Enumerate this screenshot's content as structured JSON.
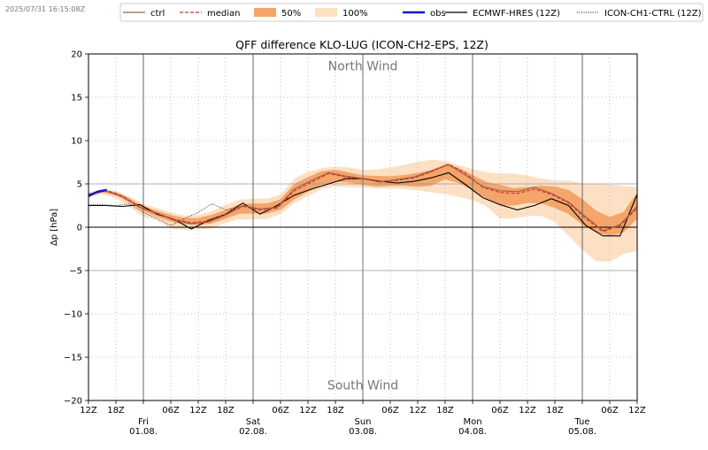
{
  "timestamp": "2025/07/31 16:15:08Z",
  "colors": {
    "ctrl": "#a05a4a",
    "median": "#c0382b",
    "band50": "#f5a56a",
    "band100": "#fde0c4",
    "obs": "#1515cc",
    "ecmwf": "#000000",
    "icon_ch1": "#333333"
  },
  "legend": [
    {
      "key": "ctrl",
      "label": "ctrl",
      "style": "solid",
      "color": "#a05a4a"
    },
    {
      "key": "median",
      "label": "median",
      "style": "dashed",
      "color": "#c0382b"
    },
    {
      "key": "band50",
      "label": "50%",
      "style": "patch",
      "color": "#f5a56a"
    },
    {
      "key": "band100",
      "label": "100%",
      "style": "patch",
      "color": "#fde0c4"
    },
    {
      "key": "obs",
      "label": "obs",
      "style": "thick",
      "color": "#1515cc"
    },
    {
      "key": "ecmwf",
      "label": "ECMWF-HRES (12Z)",
      "style": "solid",
      "color": "#000000"
    },
    {
      "key": "icon_ch1",
      "label": "ICON-CH1-CTRL (12Z)",
      "style": "dotted",
      "color": "#333333"
    }
  ],
  "chart_data": {
    "type": "line",
    "title": "QFF difference KLO-LUG (ICON-CH2-EPS, 12Z)",
    "ylabel": "Δp [hPa]",
    "xlabel": "",
    "ylim": [
      -20,
      20
    ],
    "xlim_hours": [
      0,
      120
    ],
    "grid": true,
    "legend_position": "top",
    "yticks": [
      -20,
      -15,
      -10,
      -5,
      0,
      5,
      10,
      15,
      20
    ],
    "yticks_labels": [
      "−20",
      "−15",
      "−10",
      "−5",
      "0",
      "5",
      "10",
      "15",
      "20"
    ],
    "xticks": [
      {
        "h": 0,
        "label": "12Z",
        "sub": ""
      },
      {
        "h": 6,
        "label": "18Z",
        "sub": ""
      },
      {
        "h": 12,
        "label": "Fri",
        "sub": "01.08.",
        "major": true
      },
      {
        "h": 18,
        "label": "06Z",
        "sub": ""
      },
      {
        "h": 24,
        "label": "12Z",
        "sub": ""
      },
      {
        "h": 30,
        "label": "18Z",
        "sub": ""
      },
      {
        "h": 36,
        "label": "Sat",
        "sub": "02.08.",
        "major": true
      },
      {
        "h": 42,
        "label": "06Z",
        "sub": ""
      },
      {
        "h": 48,
        "label": "12Z",
        "sub": ""
      },
      {
        "h": 54,
        "label": "18Z",
        "sub": ""
      },
      {
        "h": 60,
        "label": "Sun",
        "sub": "03.08.",
        "major": true
      },
      {
        "h": 66,
        "label": "06Z",
        "sub": ""
      },
      {
        "h": 72,
        "label": "12Z",
        "sub": ""
      },
      {
        "h": 78,
        "label": "18Z",
        "sub": ""
      },
      {
        "h": 84,
        "label": "Mon",
        "sub": "04.08.",
        "major": true
      },
      {
        "h": 90,
        "label": "06Z",
        "sub": ""
      },
      {
        "h": 96,
        "label": "12Z",
        "sub": ""
      },
      {
        "h": 102,
        "label": "18Z",
        "sub": ""
      },
      {
        "h": 108,
        "label": "Tue",
        "sub": "05.08.",
        "major": true
      },
      {
        "h": 114,
        "label": "06Z",
        "sub": ""
      },
      {
        "h": 120,
        "label": "12Z",
        "sub": ""
      }
    ],
    "annotations": [
      {
        "text": "North Wind",
        "h": 60,
        "y": 18.1
      },
      {
        "text": "South Wind",
        "h": 60,
        "y": -18.7
      }
    ],
    "x_hours": [
      0,
      3,
      6,
      9,
      12,
      15,
      18,
      21,
      24,
      27,
      30,
      33,
      36,
      39,
      42,
      45,
      48,
      51,
      54,
      57,
      60,
      63,
      66,
      69,
      72,
      75,
      78,
      81,
      84,
      87,
      90,
      93,
      96,
      99,
      102,
      105,
      108,
      111,
      114,
      117,
      120
    ],
    "series": [
      {
        "name": "median",
        "values": [
          3.8,
          4.3,
          3.6,
          2.3,
          1.6,
          0.9,
          0.5,
          0.7,
          1.5,
          2.4,
          2.0,
          2.2,
          4.2,
          5.2,
          6.2,
          5.8,
          5.6,
          5.3,
          5.4,
          5.7,
          6.4,
          7.3,
          6.2,
          4.6,
          4.0,
          3.9,
          4.4,
          3.8,
          2.8,
          1.0,
          -0.5,
          0.2,
          2.2
        ]
      },
      {
        "name": "ctrl",
        "values": [
          3.7,
          4.2,
          3.5,
          2.3,
          1.6,
          0.8,
          0.4,
          0.6,
          1.4,
          2.5,
          2.1,
          2.3,
          4.4,
          5.4,
          6.3,
          5.9,
          5.6,
          5.2,
          5.5,
          5.8,
          6.5,
          7.2,
          6.0,
          4.7,
          4.2,
          4.1,
          4.6,
          3.9,
          2.9,
          1.2,
          -0.4,
          0.3,
          2.4
        ]
      },
      {
        "name": "obs",
        "values": [
          3.6,
          4.1,
          4.3
        ]
      },
      {
        "name": "ECMWF-HRES (12Z)",
        "values": [
          2.5,
          2.5,
          2.4,
          2.6,
          1.5,
          0.9,
          -0.2,
          0.8,
          1.5,
          2.8,
          1.5,
          2.5,
          3.7,
          4.4,
          5.0,
          5.6,
          5.6,
          5.3,
          5.1,
          5.3,
          5.7,
          6.3,
          4.9,
          3.4,
          2.6,
          2.0,
          2.5,
          3.3,
          2.5,
          0.2,
          -1.0,
          -1.0,
          3.8
        ]
      },
      {
        "name": "ICON-CH1-CTRL (12Z)",
        "values": [
          2.6,
          2.6,
          2.5,
          2.7,
          1.7,
          1.0,
          0.2,
          1.0,
          1.7,
          2.7,
          2.0,
          2.3
        ]
      },
      {
        "name": "50% low",
        "values": [
          3.6,
          4.1,
          3.4,
          2.0,
          1.2,
          0.5,
          0.2,
          0.3,
          1.0,
          1.7,
          1.5,
          1.7,
          3.2,
          4.3,
          5.3,
          5.2,
          4.9,
          4.6,
          4.9,
          4.6,
          4.8,
          5.7,
          4.7,
          3.5,
          2.5,
          2.5,
          3.0,
          2.4,
          1.5,
          0.0,
          -1.0,
          -1.0,
          1.0
        ]
      },
      {
        "name": "50% high",
        "values": [
          3.9,
          4.4,
          3.8,
          2.6,
          1.9,
          1.3,
          0.9,
          1.3,
          2.0,
          2.8,
          2.7,
          2.8,
          5.0,
          6.0,
          6.8,
          6.4,
          6.0,
          5.9,
          5.9,
          6.2,
          6.6,
          7.4,
          6.5,
          5.3,
          4.9,
          4.4,
          4.8,
          4.8,
          4.3,
          3.0,
          1.2,
          1.2,
          4.0
        ]
      },
      {
        "name": "100% low",
        "values": [
          3.5,
          3.9,
          3.0,
          1.3,
          0.8,
          -0.4,
          -0.2,
          -0.3,
          0.5,
          1.0,
          0.8,
          1.2,
          2.8,
          3.8,
          4.8,
          4.6,
          4.6,
          4.4,
          4.5,
          4.3,
          4.0,
          3.8,
          3.3,
          2.8,
          1.0,
          1.0,
          1.5,
          1.0,
          -1.0,
          -3.0,
          -4.5,
          -3.2,
          -2.7
        ]
      },
      {
        "name": "100% high",
        "values": [
          4.0,
          4.5,
          4.0,
          2.8,
          2.2,
          1.6,
          1.2,
          1.7,
          2.6,
          3.3,
          3.3,
          3.3,
          5.6,
          6.6,
          7.0,
          7.0,
          6.6,
          6.7,
          7.0,
          7.5,
          7.8,
          7.6,
          6.9,
          6.4,
          6.2,
          6.2,
          5.8,
          5.4,
          5.4,
          5.0,
          5.0,
          4.8,
          4.6
        ]
      }
    ],
    "x_hours_ens": [
      0,
      4,
      8,
      12,
      16,
      20,
      24,
      28,
      32,
      36,
      40,
      44,
      48,
      52,
      56,
      60,
      64,
      68,
      72,
      76,
      80,
      84,
      88,
      92,
      96,
      100,
      104,
      108,
      112,
      116,
      120
    ],
    "x_hours_full": [
      0,
      3,
      6,
      9,
      12,
      15,
      18,
      21,
      24,
      27,
      30,
      33,
      36,
      39,
      42,
      45,
      48,
      51,
      54,
      57,
      60,
      63,
      66,
      69,
      72,
      75,
      78,
      81,
      84,
      87,
      90,
      93,
      96
    ],
    "x_hours_obs": [
      0,
      2,
      4
    ],
    "x_hours_ecmwf": [
      0,
      3,
      6,
      9,
      12,
      15,
      18,
      21,
      24,
      27,
      30,
      33,
      36,
      39,
      42,
      45,
      48,
      51,
      54,
      57,
      60,
      63,
      66,
      69,
      72,
      75,
      78,
      81,
      84,
      87,
      90,
      93,
      96
    ],
    "x_hours_icon_ch1": [
      0,
      3,
      6,
      9,
      12,
      15,
      18,
      21,
      24,
      27,
      30,
      33
    ]
  }
}
